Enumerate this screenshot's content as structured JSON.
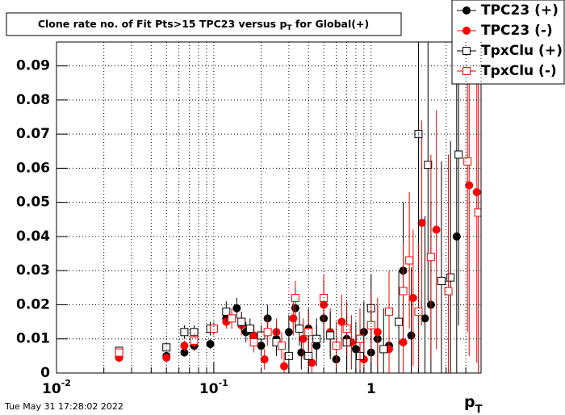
{
  "chart_data": {
    "type": "scatter",
    "title": "Clone rate no. of Fit Pts>15 TPC23 versus p",
    "title_sub": "T",
    "title_end": " for Global(+)",
    "xlabel": "p",
    "xlabel_sub": "T",
    "timestamp": "Tue May 31 17:28:02 2022",
    "xscale": "log",
    "grid": true,
    "legend": "top-right",
    "xlim": [
      0.01,
      5
    ],
    "ylim": [
      0,
      0.097
    ],
    "xticks": [
      {
        "value": 0.01,
        "label": "10",
        "sup": "-2"
      },
      {
        "value": 0.1,
        "label": "10",
        "sup": "-1"
      },
      {
        "value": 1,
        "label": "1"
      }
    ],
    "yticks": [
      0,
      0.01,
      0.02,
      0.03,
      0.04,
      0.05,
      0.06,
      0.07,
      0.08,
      0.09
    ],
    "series": [
      {
        "name": "TPC23 (+)",
        "color": "#000000",
        "marker": "circle",
        "filled": true,
        "x": [
          0.025,
          0.05,
          0.065,
          0.075,
          0.095,
          0.12,
          0.14,
          0.16,
          0.2,
          0.22,
          0.25,
          0.3,
          0.33,
          0.36,
          0.4,
          0.45,
          0.5,
          0.6,
          0.7,
          0.8,
          0.9,
          1.0,
          1.1,
          1.3,
          1.6,
          1.8,
          2.2,
          2.4,
          3.5
        ],
        "values": [
          0.0045,
          0.005,
          0.006,
          0.008,
          0.0085,
          0.016,
          0.019,
          0.012,
          0.008,
          0.016,
          0.01,
          0.012,
          0.019,
          0.006,
          0.013,
          0.008,
          0.016,
          0.004,
          0.01,
          0.007,
          0.012,
          0.006,
          0.01,
          0.008,
          0.03,
          0.011,
          0.016,
          0.02,
          0.04
        ],
        "errors": [
          0.001,
          0.001,
          0.0012,
          0.0015,
          0.0015,
          0.002,
          0.003,
          0.003,
          0.003,
          0.004,
          0.004,
          0.005,
          0.006,
          0.005,
          0.006,
          0.006,
          0.007,
          0.007,
          0.008,
          0.008,
          0.009,
          0.01,
          0.01,
          0.012,
          0.02,
          0.02,
          0.03,
          0.03,
          0.05
        ]
      },
      {
        "name": "TPC23 (-)",
        "color": "#ff0000",
        "marker": "circle",
        "filled": true,
        "x": [
          0.025,
          0.05,
          0.065,
          0.075,
          0.12,
          0.15,
          0.18,
          0.21,
          0.25,
          0.28,
          0.32,
          0.37,
          0.42,
          0.5,
          0.55,
          0.65,
          0.75,
          0.9,
          1.1,
          1.3,
          1.6,
          1.85,
          2.1,
          2.6,
          4.2,
          4.7
        ],
        "values": [
          0.0045,
          0.0045,
          0.008,
          0.009,
          0.015,
          0.014,
          0.011,
          0.004,
          0.012,
          0.002,
          0.016,
          0.01,
          0.003,
          0.02,
          0.012,
          0.015,
          0.009,
          0.004,
          0.012,
          0.007,
          0.009,
          0.022,
          0.044,
          0.042,
          0.055,
          0.053
        ],
        "errors": [
          0.001,
          0.001,
          0.0015,
          0.002,
          0.002,
          0.003,
          0.003,
          0.003,
          0.004,
          0.004,
          0.005,
          0.006,
          0.006,
          0.007,
          0.007,
          0.008,
          0.008,
          0.009,
          0.01,
          0.012,
          0.015,
          0.02,
          0.03,
          0.035,
          0.05,
          0.05
        ]
      },
      {
        "name": "TpxClu (+)",
        "color": "#000000",
        "marker": "square",
        "filled": false,
        "x": [
          0.025,
          0.05,
          0.065,
          0.075,
          0.095,
          0.12,
          0.15,
          0.17,
          0.2,
          0.25,
          0.3,
          0.35,
          0.4,
          0.45,
          0.55,
          0.7,
          0.85,
          1.0,
          1.2,
          1.5,
          2.0,
          2.3,
          2.8,
          3.2,
          3.6
        ],
        "values": [
          0.0065,
          0.0075,
          0.012,
          0.012,
          0.013,
          0.018,
          0.015,
          0.013,
          0.011,
          0.009,
          0.005,
          0.013,
          0.005,
          0.01,
          0.011,
          0.009,
          0.005,
          0.019,
          0.007,
          0.015,
          0.07,
          0.061,
          0.027,
          0.028,
          0.064
        ],
        "errors": [
          0.0012,
          0.0012,
          0.002,
          0.002,
          0.002,
          0.003,
          0.003,
          0.003,
          0.003,
          0.004,
          0.005,
          0.005,
          0.006,
          0.006,
          0.007,
          0.008,
          0.009,
          0.01,
          0.012,
          0.015,
          0.04,
          0.04,
          0.035,
          0.04,
          0.05
        ]
      },
      {
        "name": "TpxClu (-)",
        "color": "#ff0000",
        "marker": "square",
        "filled": false,
        "x": [
          0.025,
          0.075,
          0.1,
          0.13,
          0.18,
          0.22,
          0.27,
          0.33,
          0.4,
          0.5,
          0.6,
          0.7,
          0.85,
          1.0,
          1.3,
          1.6,
          1.75,
          2.0,
          2.4,
          3.1,
          4.1,
          4.8
        ],
        "values": [
          0.006,
          0.0095,
          0.013,
          0.016,
          0.009,
          0.012,
          0.008,
          0.022,
          0.012,
          0.022,
          0.008,
          0.013,
          0.01,
          0.014,
          0.018,
          0.024,
          0.033,
          0.018,
          0.034,
          0.024,
          0.062,
          0.047
        ],
        "errors": [
          0.0012,
          0.002,
          0.002,
          0.003,
          0.003,
          0.004,
          0.004,
          0.005,
          0.006,
          0.007,
          0.007,
          0.008,
          0.009,
          0.01,
          0.012,
          0.014,
          0.02,
          0.02,
          0.03,
          0.04,
          0.05,
          0.05
        ]
      }
    ]
  }
}
